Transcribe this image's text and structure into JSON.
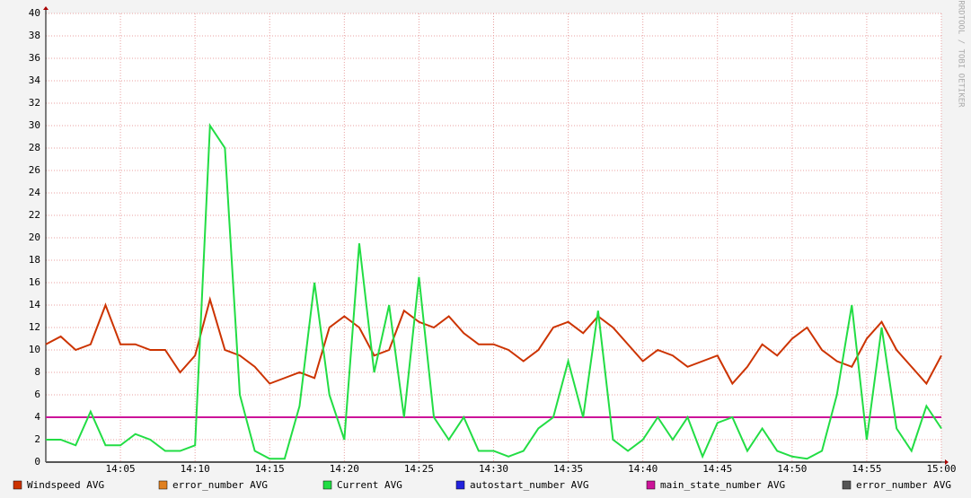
{
  "chart_data": {
    "type": "line",
    "watermark": "RRDTOOL / TOBI OETIKER",
    "x": [
      0,
      1,
      2,
      3,
      4,
      5,
      6,
      7,
      8,
      9,
      10,
      11,
      12,
      13,
      14,
      15,
      16,
      17,
      18,
      19,
      20,
      21,
      22,
      23,
      24,
      25,
      26,
      27,
      28,
      29,
      30,
      31,
      32,
      33,
      34,
      35,
      36,
      37,
      38,
      39,
      40,
      41,
      42,
      43,
      44,
      45,
      46,
      47,
      48,
      49,
      50,
      51,
      52,
      53,
      54,
      55,
      56,
      57,
      58,
      59,
      60
    ],
    "xlim": [
      0,
      60
    ],
    "xticks": [
      {
        "value": 5,
        "label": "14:05"
      },
      {
        "value": 10,
        "label": "14:10"
      },
      {
        "value": 15,
        "label": "14:15"
      },
      {
        "value": 20,
        "label": "14:20"
      },
      {
        "value": 25,
        "label": "14:25"
      },
      {
        "value": 30,
        "label": "14:30"
      },
      {
        "value": 35,
        "label": "14:35"
      },
      {
        "value": 40,
        "label": "14:40"
      },
      {
        "value": 45,
        "label": "14:45"
      },
      {
        "value": 50,
        "label": "14:50"
      },
      {
        "value": 55,
        "label": "14:55"
      },
      {
        "value": 60,
        "label": "15:00"
      }
    ],
    "ylim": [
      0,
      40
    ],
    "yticks": [
      0,
      2,
      4,
      6,
      8,
      10,
      12,
      14,
      16,
      18,
      20,
      22,
      24,
      26,
      28,
      30,
      32,
      34,
      36,
      38,
      40
    ],
    "grid": true,
    "series": [
      {
        "name": "Windspeed AVG",
        "color": "#cc3300",
        "values": [
          10.5,
          11.2,
          10,
          10.5,
          14,
          10.5,
          10.5,
          10,
          10,
          8,
          9.5,
          14.5,
          10,
          9.5,
          8.5,
          7,
          7.5,
          8,
          7.5,
          12,
          13,
          12,
          9.5,
          10,
          13.5,
          12.5,
          12,
          13,
          11.5,
          10.5,
          10.5,
          10,
          9,
          10,
          12,
          12.5,
          11.5,
          13,
          12,
          10.5,
          9,
          10,
          9.5,
          8.5,
          9,
          9.5,
          7,
          8.5,
          10.5,
          9.5,
          11,
          12,
          10,
          9,
          8.5,
          11,
          12.5,
          10,
          8.5,
          7,
          9.5
        ]
      },
      {
        "name": "error_number AVG",
        "color": "#e08020",
        "values": [
          0,
          0,
          0,
          0,
          0,
          0,
          0,
          0,
          0,
          0,
          0,
          0,
          0,
          0,
          0,
          0,
          0,
          0,
          0,
          0,
          0,
          0,
          0,
          0,
          0,
          0,
          0,
          0,
          0,
          0,
          0,
          0,
          0,
          0,
          0,
          0,
          0,
          0,
          0,
          0,
          0,
          0,
          0,
          0,
          0,
          0,
          0,
          0,
          0,
          0,
          0,
          0,
          0,
          0,
          0,
          0,
          0,
          0,
          0,
          0,
          0
        ]
      },
      {
        "name": "Current AVG",
        "color": "#22dd44",
        "values": [
          2,
          2,
          1.5,
          4.5,
          1.5,
          1.5,
          2.5,
          2,
          1,
          1,
          1.5,
          30,
          28,
          6,
          1,
          0.3,
          0.3,
          5,
          16,
          6,
          2,
          19.5,
          8,
          14,
          4,
          16.5,
          4,
          2,
          4,
          1,
          1,
          0.5,
          1,
          3,
          4,
          9,
          4,
          13.5,
          2,
          1,
          2,
          4,
          2,
          4,
          0.5,
          3.5,
          4,
          1,
          3,
          1,
          0.5,
          0.3,
          1,
          6,
          14,
          2,
          12,
          3,
          1,
          5,
          3
        ]
      },
      {
        "name": "autostart_number AVG",
        "color": "#2222dd",
        "values": [
          0,
          0,
          0,
          0,
          0,
          0,
          0,
          0,
          0,
          0,
          0,
          0,
          0,
          0,
          0,
          0,
          0,
          0,
          0,
          0,
          0,
          0,
          0,
          0,
          0,
          0,
          0,
          0,
          0,
          0,
          0,
          0,
          0,
          0,
          0,
          0,
          0,
          0,
          0,
          0,
          0,
          0,
          0,
          0,
          0,
          0,
          0,
          0,
          0,
          0,
          0,
          0,
          0,
          0,
          0,
          0,
          0,
          0,
          0,
          0,
          0
        ]
      },
      {
        "name": "main_state_number AVG",
        "color": "#cc1499",
        "values": [
          4,
          4,
          4,
          4,
          4,
          4,
          4,
          4,
          4,
          4,
          4,
          4,
          4,
          4,
          4,
          4,
          4,
          4,
          4,
          4,
          4,
          4,
          4,
          4,
          4,
          4,
          4,
          4,
          4,
          4,
          4,
          4,
          4,
          4,
          4,
          4,
          4,
          4,
          4,
          4,
          4,
          4,
          4,
          4,
          4,
          4,
          4,
          4,
          4,
          4,
          4,
          4,
          4,
          4,
          4,
          4,
          4,
          4,
          4,
          4,
          4
        ]
      },
      {
        "name": "error_number AVG",
        "color": "#555555",
        "values": [
          0,
          0,
          0,
          0,
          0,
          0,
          0,
          0,
          0,
          0,
          0,
          0,
          0,
          0,
          0,
          0,
          0,
          0,
          0,
          0,
          0,
          0,
          0,
          0,
          0,
          0,
          0,
          0,
          0,
          0,
          0,
          0,
          0,
          0,
          0,
          0,
          0,
          0,
          0,
          0,
          0,
          0,
          0,
          0,
          0,
          0,
          0,
          0,
          0,
          0,
          0,
          0,
          0,
          0,
          0,
          0,
          0,
          0,
          0,
          0,
          0
        ]
      }
    ]
  }
}
